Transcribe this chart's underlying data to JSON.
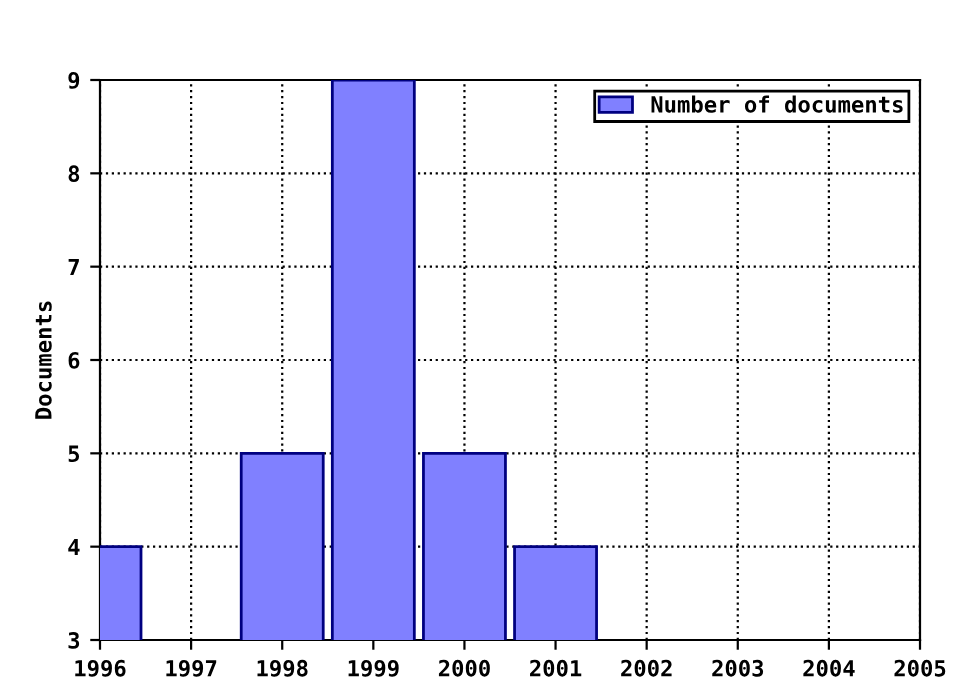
{
  "chart_data": {
    "type": "bar",
    "ylabel": "Documents",
    "x": [
      1996,
      1998,
      1999,
      2000,
      2001
    ],
    "series": [
      {
        "name": "Number of documents",
        "color": "#8080ff",
        "values": [
          4,
          5,
          9,
          5,
          4
        ]
      }
    ],
    "xlim": [
      1996,
      2005
    ],
    "xticks": [
      1996,
      1997,
      1998,
      1999,
      2000,
      2001,
      2002,
      2003,
      2004,
      2005
    ],
    "ylim": [
      3,
      9
    ],
    "yticks": [
      3,
      4,
      5,
      6,
      7,
      8,
      9
    ],
    "grid": true,
    "line_style": "dotted",
    "legend": "top right"
  }
}
